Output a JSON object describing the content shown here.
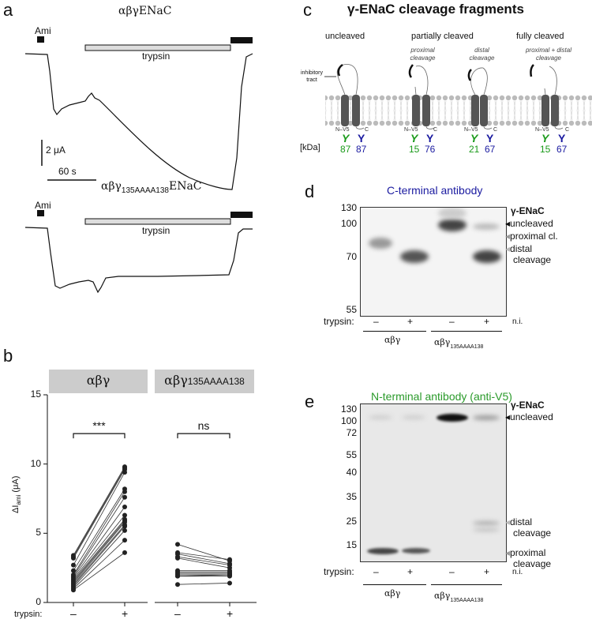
{
  "panels": {
    "a": "a",
    "b": "b",
    "c": "c",
    "d": "d",
    "e": "e"
  },
  "panel_a": {
    "trace1_title": "αβγENaC",
    "trace2_title_main": "αβγ",
    "trace2_title_sub": "135AAAA138",
    "trace2_title_end": "ENaC",
    "ami_label": "Ami",
    "trypsin_label": "trypsin",
    "scale_current": "2 μA",
    "scale_time": "60 s"
  },
  "chart_data": {
    "type": "scatter",
    "ylabel": "ΔI",
    "ylabel_sub": "ami",
    "ylabel_unit": "(μA)",
    "ylim": [
      0,
      15
    ],
    "yticks": [
      "0",
      "5",
      "10",
      "15"
    ],
    "xlabel_prefix": "trypsin:",
    "categories": [
      "–",
      "+"
    ],
    "groups": [
      {
        "name": "αβγ",
        "sub": "",
        "significance": "***",
        "pairs": [
          [
            3.4,
            9.8
          ],
          [
            3.3,
            9.7
          ],
          [
            3.2,
            9.6
          ],
          [
            2.7,
            9.4
          ],
          [
            2.3,
            8.2
          ],
          [
            2.0,
            8.0
          ],
          [
            1.9,
            7.6
          ],
          [
            1.8,
            6.9
          ],
          [
            1.7,
            6.3
          ],
          [
            1.6,
            6.0
          ],
          [
            1.5,
            5.9
          ],
          [
            1.4,
            5.8
          ],
          [
            1.3,
            5.6
          ],
          [
            1.2,
            5.5
          ],
          [
            1.1,
            5.2
          ],
          [
            1.0,
            4.5
          ],
          [
            0.9,
            3.6
          ]
        ]
      },
      {
        "name": "αβγ",
        "sub": "135AAAA138",
        "significance": "ns",
        "pairs": [
          [
            4.2,
            3.0
          ],
          [
            3.6,
            3.1
          ],
          [
            3.5,
            2.8
          ],
          [
            3.3,
            2.7
          ],
          [
            3.2,
            2.5
          ],
          [
            2.3,
            2.3
          ],
          [
            2.2,
            2.2
          ],
          [
            2.1,
            2.1
          ],
          [
            2.0,
            2.0
          ],
          [
            1.9,
            2.0
          ],
          [
            1.9,
            1.9
          ],
          [
            1.3,
            1.4
          ]
        ]
      }
    ]
  },
  "panel_c": {
    "title": "γ-ENaC cleavage fragments",
    "states": [
      "uncleaved",
      "partially cleaved",
      "fully cleaved"
    ],
    "subtitles": [
      "proximal cleavage",
      "distal cleavage",
      "proximal + distal cleavage"
    ],
    "inhibitory_tract": "inhibitory tract",
    "kda_label": "[kDa]",
    "nterm": "N–V5",
    "cterm": "C",
    "kda": [
      {
        "n": "87",
        "c": "87"
      },
      {
        "n": "15",
        "c": "76"
      },
      {
        "n": "21",
        "c": "67"
      },
      {
        "n": "15",
        "c": "67"
      }
    ],
    "colors": {
      "n": "#1a9a1a",
      "c": "#1a1aa0"
    }
  },
  "panel_d": {
    "title": "C-terminal antibody",
    "ladder": [
      "130",
      "100",
      "70",
      "55"
    ],
    "labels": {
      "enac": "γ-ENaC",
      "uncleaved": "uncleaved",
      "proximal": "proximal cl.",
      "distal": "distal cleavage"
    },
    "trypsin": "trypsin:",
    "lanes": [
      "–",
      "+",
      "–",
      "+"
    ],
    "ni": "n.i.",
    "group1": "αβγ",
    "group2": "αβγ",
    "group2_sub": "135AAAA138"
  },
  "panel_e": {
    "title": "N-terminal antibody (anti-V5)",
    "ladder": [
      "130",
      "100",
      "72",
      "55",
      "40",
      "35",
      "25",
      "15"
    ],
    "labels": {
      "enac": "γ-ENaC",
      "uncleaved": "uncleaved",
      "distal": "distal cleavage",
      "proximal": "proximal cleavage"
    },
    "trypsin": "trypsin:",
    "lanes": [
      "–",
      "+",
      "–",
      "+"
    ],
    "ni": "n.i.",
    "group1": "αβγ",
    "group2": "αβγ",
    "group2_sub": "135AAAA138"
  }
}
